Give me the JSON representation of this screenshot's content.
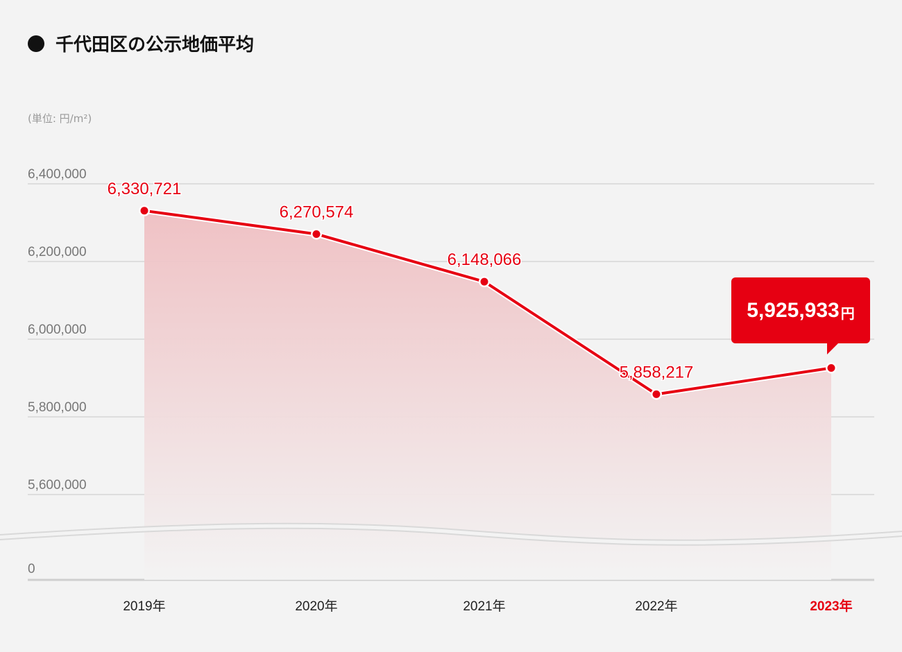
{
  "title": "千代田区の公示地価平均",
  "unit_label": "(単位: 円/m²)",
  "colors": {
    "accent": "#e60012",
    "grid": "#d6d6d6",
    "axis_text": "#777777"
  },
  "chart_data": {
    "type": "area",
    "categories": [
      "2019年",
      "2020年",
      "2021年",
      "2022年",
      "2023年"
    ],
    "series": [
      {
        "values": [
          6330721,
          6270574,
          6148066,
          5858217,
          5925933
        ]
      }
    ],
    "value_labels": [
      "6,330,721",
      "6,270,574",
      "6,148,066",
      "5,858,217",
      "5,925,933"
    ],
    "y_ticks": [
      {
        "value": 6400000,
        "label": "6,400,000"
      },
      {
        "value": 6200000,
        "label": "6,200,000"
      },
      {
        "value": 6000000,
        "label": "6,000,000"
      },
      {
        "value": 5800000,
        "label": "5,800,000"
      },
      {
        "value": 5600000,
        "label": "5,600,000"
      },
      {
        "value": 0,
        "label": "0"
      }
    ],
    "ylim": [
      5600000,
      6400000
    ],
    "axis_break": true,
    "grid": true,
    "highlight_index": 4,
    "highlight": {
      "value": "5,925,933",
      "unit": "円"
    }
  }
}
